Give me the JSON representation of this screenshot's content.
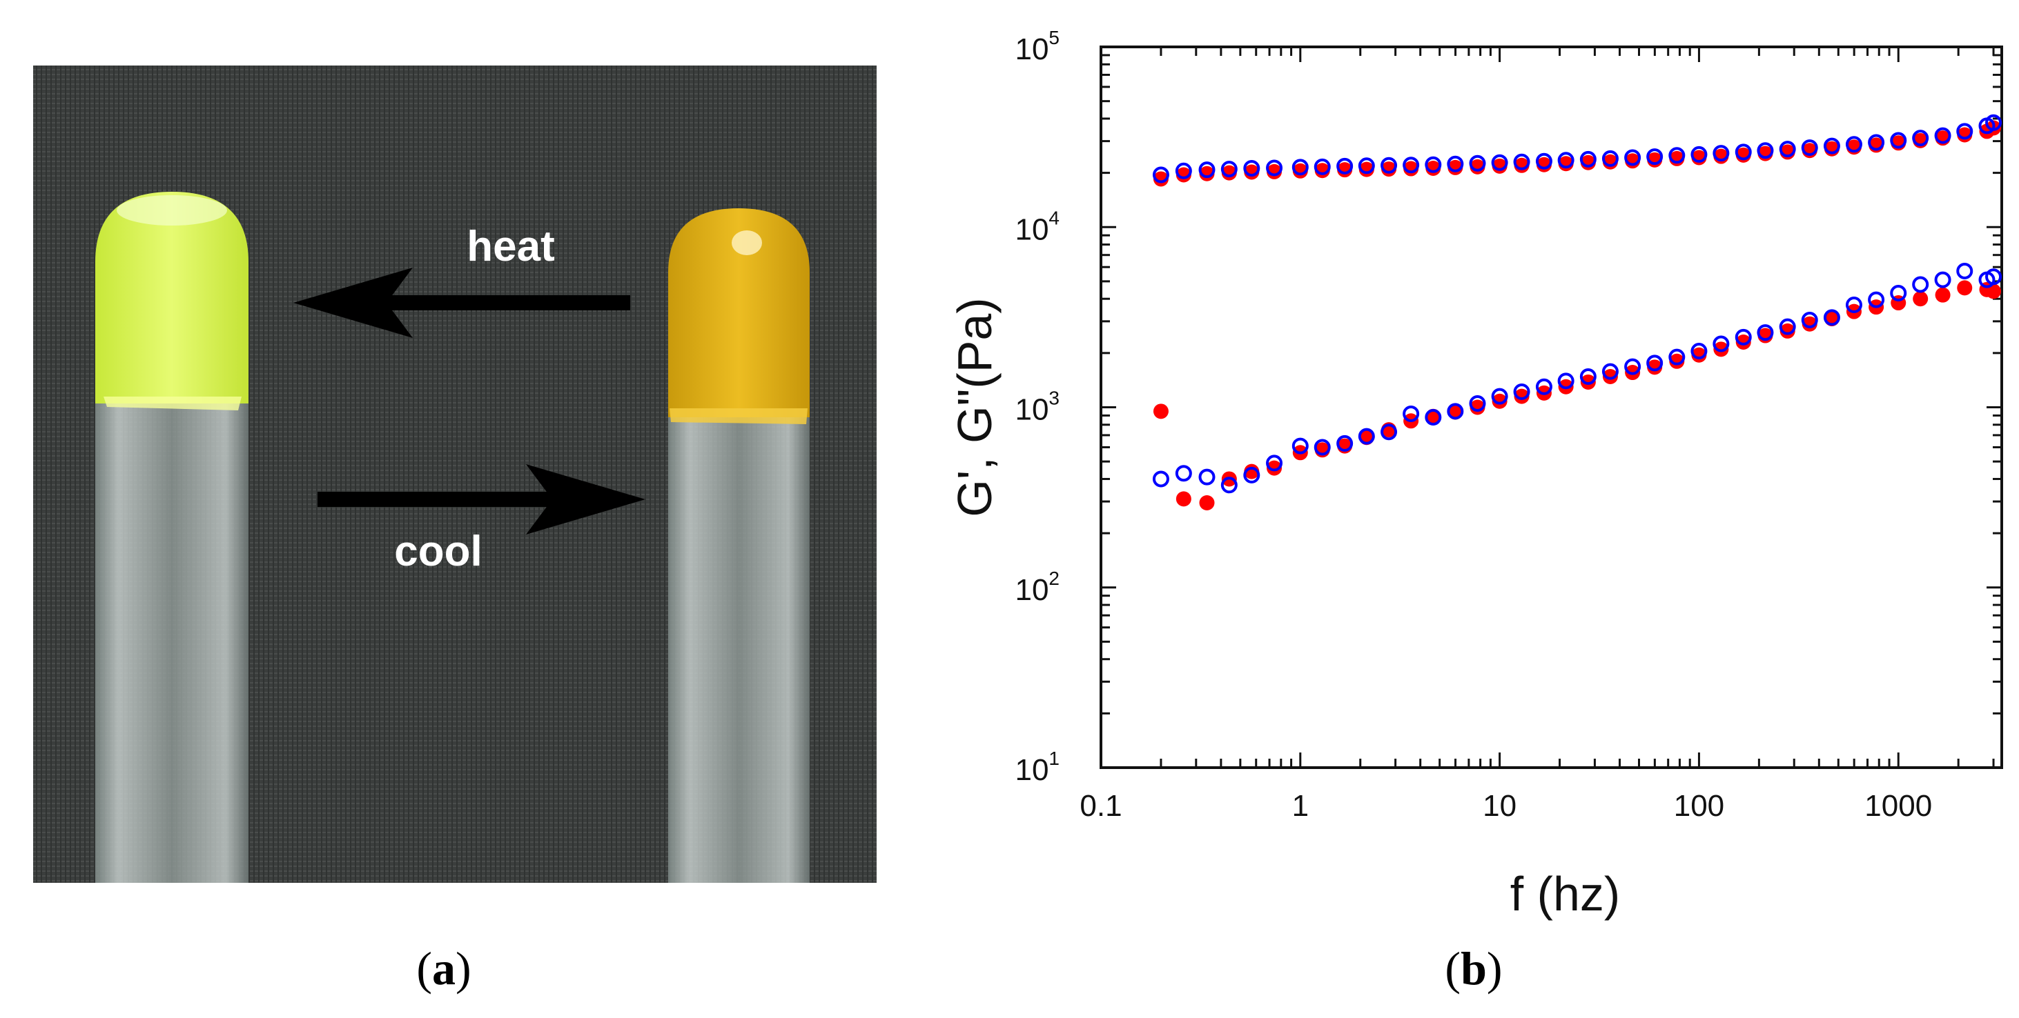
{
  "panel_a": {
    "caption": "a",
    "arrow_top_label": "heat",
    "arrow_bottom_label": "cool",
    "colors": {
      "background": "#3a3d3c",
      "left_gel": "#d8f04a",
      "right_gel": "#e2b416",
      "arrow": "#000000",
      "text": "#ffffff"
    }
  },
  "panel_b": {
    "caption": "b"
  },
  "chart_data": {
    "type": "scatter",
    "xscale": "log",
    "yscale": "log",
    "xlabel": "f (hz)",
    "ylabel": "G', G\"(Pa)",
    "xlim": [
      0.1,
      3300
    ],
    "ylim": [
      10,
      100000
    ],
    "xticks": [
      "0.1",
      "1",
      "10",
      "100",
      "1000"
    ],
    "yticks": [
      {
        "base": "10",
        "exp": "1"
      },
      {
        "base": "10",
        "exp": "2"
      },
      {
        "base": "10",
        "exp": "3"
      },
      {
        "base": "10",
        "exp": "4"
      },
      {
        "base": "10",
        "exp": "5"
      }
    ],
    "series": [
      {
        "name": "G' (filled)",
        "color": "#ff0000",
        "marker": "filled-circle",
        "x": [
          0.2,
          0.26,
          0.34,
          0.44,
          0.57,
          0.74,
          1.0,
          1.29,
          1.67,
          2.15,
          2.78,
          3.59,
          4.64,
          5.99,
          7.74,
          10,
          12.9,
          16.7,
          21.5,
          27.8,
          35.9,
          46.4,
          59.9,
          77.4,
          100,
          129,
          167,
          215,
          278,
          359,
          464,
          599,
          774,
          1000,
          1290,
          1670,
          2150,
          2780,
          3000
        ],
        "y": [
          18500,
          19500,
          19800,
          20000,
          20200,
          20300,
          20500,
          20600,
          20800,
          20900,
          21000,
          21100,
          21200,
          21400,
          21600,
          21800,
          22000,
          22200,
          22500,
          22800,
          23000,
          23300,
          23600,
          24000,
          24300,
          24700,
          25100,
          25600,
          26100,
          26600,
          27200,
          27800,
          28500,
          29300,
          30200,
          31200,
          32500,
          34000,
          35500
        ]
      },
      {
        "name": "G' (open)",
        "color": "#0000ff",
        "marker": "open-circle",
        "x": [
          0.2,
          0.26,
          0.34,
          0.44,
          0.57,
          0.74,
          1.0,
          1.29,
          1.67,
          2.15,
          2.78,
          3.59,
          4.64,
          5.99,
          7.74,
          10,
          12.9,
          16.7,
          21.5,
          27.8,
          35.9,
          46.4,
          59.9,
          77.4,
          100,
          129,
          167,
          215,
          278,
          359,
          464,
          599,
          774,
          1000,
          1290,
          1670,
          2150,
          2780,
          3000
        ],
        "y": [
          19500,
          20500,
          20800,
          21000,
          21200,
          21300,
          21500,
          21600,
          21800,
          21900,
          22000,
          22100,
          22200,
          22400,
          22600,
          22800,
          23000,
          23200,
          23500,
          23800,
          24000,
          24300,
          24600,
          25000,
          25300,
          25700,
          26100,
          26600,
          27100,
          27600,
          28200,
          28800,
          29500,
          30300,
          31200,
          32200,
          34000,
          36500,
          38000
        ]
      },
      {
        "name": "G\" (filled)",
        "color": "#ff0000",
        "marker": "filled-circle",
        "x": [
          0.2,
          0.26,
          0.34,
          0.44,
          0.57,
          0.74,
          1.0,
          1.29,
          1.67,
          2.15,
          2.78,
          3.59,
          4.64,
          5.99,
          7.74,
          10,
          12.9,
          16.7,
          21.5,
          27.8,
          35.9,
          46.4,
          59.9,
          77.4,
          100,
          129,
          167,
          215,
          278,
          359,
          464,
          599,
          774,
          1000,
          1290,
          1670,
          2150,
          2780,
          3000
        ],
        "y": [
          950,
          310,
          295,
          400,
          440,
          460,
          560,
          580,
          610,
          680,
          750,
          840,
          890,
          940,
          1000,
          1080,
          1150,
          1200,
          1300,
          1380,
          1480,
          1560,
          1670,
          1800,
          1950,
          2100,
          2300,
          2500,
          2650,
          2900,
          3100,
          3400,
          3600,
          3800,
          4000,
          4200,
          4600,
          4500,
          4400
        ]
      },
      {
        "name": "G\" (open)",
        "color": "#0000ff",
        "marker": "open-circle",
        "x": [
          0.2,
          0.26,
          0.34,
          0.44,
          0.57,
          0.74,
          1.0,
          1.29,
          1.67,
          2.15,
          2.78,
          3.59,
          4.64,
          5.99,
          7.74,
          10,
          12.9,
          16.7,
          21.5,
          27.8,
          35.9,
          46.4,
          59.9,
          77.4,
          100,
          129,
          167,
          215,
          278,
          359,
          464,
          599,
          774,
          1000,
          1290,
          1670,
          2150,
          2780,
          3000
        ],
        "y": [
          400,
          430,
          410,
          370,
          420,
          490,
          610,
          600,
          630,
          690,
          730,
          920,
          880,
          950,
          1050,
          1150,
          1220,
          1300,
          1400,
          1480,
          1580,
          1680,
          1760,
          1900,
          2050,
          2250,
          2450,
          2600,
          2800,
          3050,
          3150,
          3700,
          3950,
          4300,
          4800,
          5100,
          5700,
          5100,
          5300
        ]
      }
    ]
  }
}
